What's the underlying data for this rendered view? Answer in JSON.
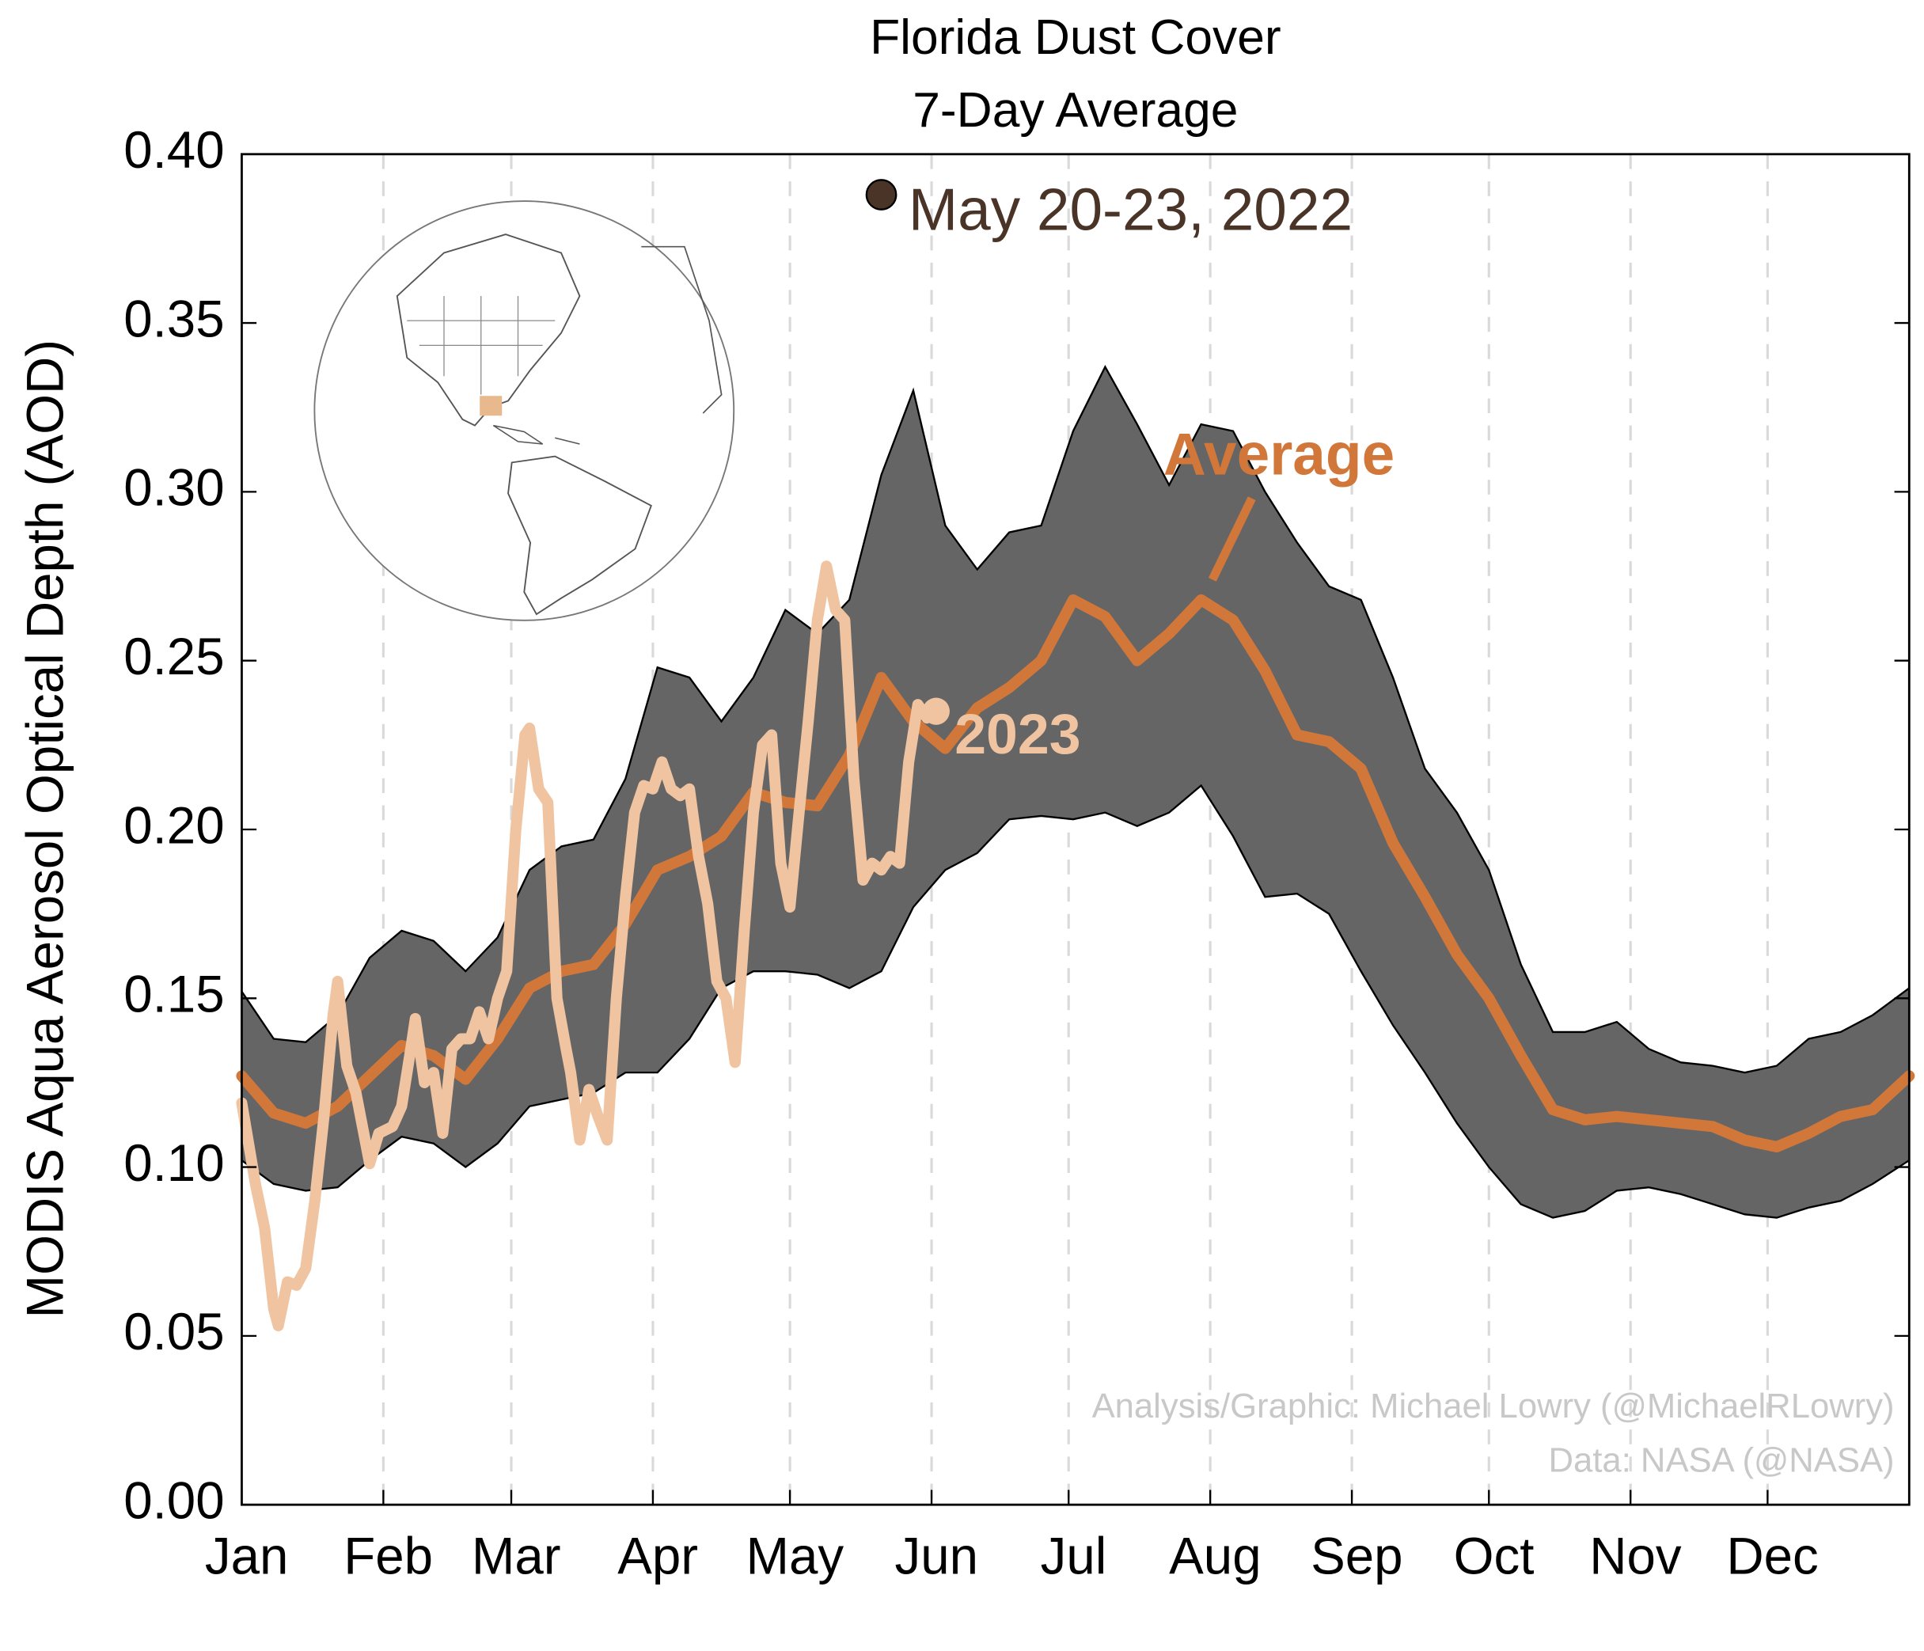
{
  "chart_data": {
    "type": "line",
    "title": "Florida Dust Cover",
    "subtitle": "7-Day Average",
    "ylabel": "MODIS Aqua Aerosol Optical Depth (AOD)",
    "xlim": [
      0,
      365
    ],
    "xticks": [
      {
        "value": 0,
        "label": "Jan"
      },
      {
        "value": 31,
        "label": "Feb"
      },
      {
        "value": 59,
        "label": "Mar"
      },
      {
        "value": 90,
        "label": "Apr"
      },
      {
        "value": 120,
        "label": "May"
      },
      {
        "value": 151,
        "label": "Jun"
      },
      {
        "value": 181,
        "label": "Jul"
      },
      {
        "value": 212,
        "label": "Aug"
      },
      {
        "value": 243,
        "label": "Sep"
      },
      {
        "value": 273,
        "label": "Oct"
      },
      {
        "value": 304,
        "label": "Nov"
      },
      {
        "value": 334,
        "label": "Dec"
      }
    ],
    "ylim": [
      0,
      0.4
    ],
    "yticks": [
      {
        "value": 0,
        "label": "0.00"
      },
      0.05,
      {
        "value": 0.1,
        "label": "0.10"
      },
      0.15,
      {
        "value": 0.2,
        "label": "0.20"
      },
      0.25,
      {
        "value": 0.3,
        "label": "0.30"
      },
      0.35,
      {
        "value": 0.4,
        "label": "0.40"
      }
    ],
    "grid": true,
    "x": [
      0,
      7,
      14,
      21,
      28,
      35,
      42,
      49,
      56,
      63,
      70,
      77,
      84,
      91,
      98,
      105,
      112,
      119,
      126,
      133,
      140,
      147,
      154,
      161,
      168,
      175,
      182,
      189,
      196,
      203,
      210,
      217,
      224,
      231,
      238,
      245,
      252,
      259,
      266,
      273,
      280,
      287,
      294,
      301,
      308,
      315,
      322,
      329,
      336,
      343,
      350,
      357,
      365
    ],
    "band": {
      "color": "#656565",
      "upper": [
        0.152,
        0.138,
        0.137,
        0.145,
        0.162,
        0.17,
        0.167,
        0.158,
        0.168,
        0.188,
        0.195,
        0.197,
        0.215,
        0.248,
        0.245,
        0.232,
        0.245,
        0.265,
        0.258,
        0.268,
        0.305,
        0.33,
        0.29,
        0.277,
        0.288,
        0.29,
        0.318,
        0.337,
        0.32,
        0.302,
        0.32,
        0.318,
        0.3,
        0.285,
        0.272,
        0.268,
        0.245,
        0.218,
        0.205,
        0.188,
        0.16,
        0.14,
        0.14,
        0.143,
        0.135,
        0.131,
        0.13,
        0.128,
        0.13,
        0.138,
        0.14,
        0.145,
        0.153
      ],
      "lower": [
        0.102,
        0.095,
        0.093,
        0.094,
        0.102,
        0.109,
        0.107,
        0.1,
        0.107,
        0.118,
        0.12,
        0.122,
        0.128,
        0.128,
        0.138,
        0.153,
        0.158,
        0.158,
        0.157,
        0.153,
        0.158,
        0.177,
        0.188,
        0.193,
        0.203,
        0.204,
        0.203,
        0.205,
        0.201,
        0.205,
        0.213,
        0.198,
        0.18,
        0.181,
        0.175,
        0.158,
        0.142,
        0.128,
        0.113,
        0.1,
        0.089,
        0.085,
        0.087,
        0.093,
        0.094,
        0.092,
        0.089,
        0.086,
        0.085,
        0.088,
        0.09,
        0.095,
        0.102
      ]
    },
    "series": [
      {
        "name": "Average",
        "color": "#d2773a",
        "values": [
          0.127,
          0.116,
          0.113,
          0.118,
          0.127,
          0.136,
          0.133,
          0.126,
          0.138,
          0.153,
          0.158,
          0.16,
          0.172,
          0.188,
          0.192,
          0.198,
          0.211,
          0.208,
          0.207,
          0.222,
          0.245,
          0.232,
          0.224,
          0.236,
          0.242,
          0.25,
          0.268,
          0.263,
          0.25,
          0.258,
          0.268,
          0.262,
          0.247,
          0.228,
          0.226,
          0.218,
          0.196,
          0.18,
          0.163,
          0.15,
          0.133,
          0.117,
          0.114,
          0.115,
          0.114,
          0.113,
          0.112,
          0.108,
          0.106,
          0.11,
          0.115,
          0.117,
          0.127
        ]
      },
      {
        "name": "2023",
        "color": "#f0c4a0",
        "x": [
          0,
          3,
          5,
          7,
          8,
          10,
          12,
          14,
          16,
          18,
          20,
          21,
          23,
          25,
          27,
          28,
          30,
          33,
          35,
          37,
          38,
          40,
          42,
          44,
          46,
          48,
          50,
          52,
          54,
          56,
          58,
          60,
          62,
          63,
          65,
          67,
          69,
          71,
          72,
          74,
          76,
          78,
          80,
          82,
          84,
          86,
          88,
          90,
          92,
          94,
          96,
          98,
          100,
          102,
          104,
          106,
          108,
          110,
          112,
          114,
          116,
          118,
          120,
          122,
          124,
          126,
          128,
          130,
          132,
          134,
          136,
          138,
          140,
          142,
          144,
          146,
          148,
          150,
          152
        ],
        "values": [
          0.119,
          0.095,
          0.082,
          0.058,
          0.053,
          0.066,
          0.065,
          0.07,
          0.09,
          0.115,
          0.145,
          0.155,
          0.13,
          0.122,
          0.108,
          0.101,
          0.11,
          0.112,
          0.118,
          0.135,
          0.144,
          0.125,
          0.128,
          0.11,
          0.135,
          0.138,
          0.138,
          0.146,
          0.138,
          0.15,
          0.158,
          0.2,
          0.228,
          0.23,
          0.212,
          0.208,
          0.15,
          0.135,
          0.128,
          0.108,
          0.123,
          0.115,
          0.108,
          0.15,
          0.18,
          0.205,
          0.213,
          0.212,
          0.22,
          0.212,
          0.21,
          0.212,
          0.192,
          0.178,
          0.155,
          0.15,
          0.131,
          0.17,
          0.205,
          0.225,
          0.228,
          0.19,
          0.177,
          0.205,
          0.232,
          0.262,
          0.278,
          0.265,
          0.262,
          0.215,
          0.185,
          0.19,
          0.188,
          0.192,
          0.19,
          0.22,
          0.237,
          0.233,
          0.235
        ]
      }
    ],
    "annotations": [
      {
        "text": "May 20-23, 2022",
        "x": 140,
        "y": 0.388,
        "color": "#4a3428"
      }
    ],
    "credits": [
      "Analysis/Graphic: Michael Lowry (@MichaelRLowry)",
      "Data: NASA (@NASA)"
    ]
  }
}
